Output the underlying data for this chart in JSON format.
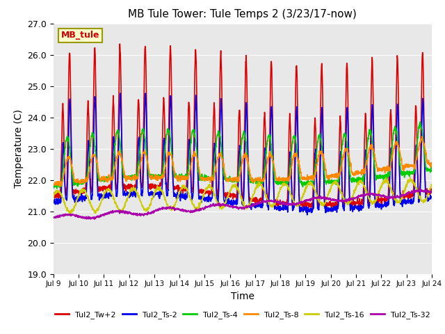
{
  "title": "MB Tule Tower: Tule Temps 2 (3/23/17-now)",
  "xlabel": "Time",
  "ylabel": "Temperature (C)",
  "ylim": [
    19.0,
    27.0
  ],
  "yticks": [
    19.0,
    20.0,
    21.0,
    22.0,
    23.0,
    24.0,
    25.0,
    26.0,
    27.0
  ],
  "xlim": [
    0,
    15
  ],
  "xtick_labels": [
    "Jul 9",
    "Jul 10",
    "Jul 11",
    "Jul 12",
    "Jul 13",
    "Jul 14",
    "Jul 15",
    "Jul 16",
    "Jul 17",
    "Jul 18",
    "Jul 19",
    "Jul 20",
    "Jul 21",
    "Jul 22",
    "Jul 23",
    "Jul 24"
  ],
  "bg_color": "#e8e8e8",
  "legend_label": "MB_tule",
  "series": {
    "Tul2_Tw+2": {
      "color": "#dd0000",
      "lw": 1.2
    },
    "Tul2_Ts-2": {
      "color": "#0000ee",
      "lw": 1.2
    },
    "Tul2_Ts-4": {
      "color": "#00cc00",
      "lw": 1.2
    },
    "Tul2_Ts-8": {
      "color": "#ff8800",
      "lw": 1.2
    },
    "Tul2_Ts-16": {
      "color": "#cccc00",
      "lw": 1.2
    },
    "Tul2_Ts-32": {
      "color": "#aa00aa",
      "lw": 1.2
    }
  }
}
